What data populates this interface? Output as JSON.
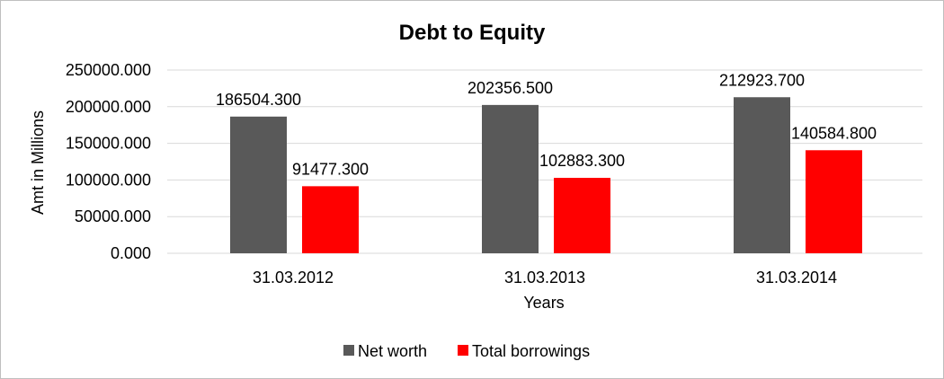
{
  "chart_data": {
    "type": "bar",
    "title": "Debt to Equity",
    "xlabel": "Years",
    "ylabel": "Amt in Millions",
    "categories": [
      "31.03.2012",
      "31.03.2013",
      "31.03.2014"
    ],
    "series": [
      {
        "name": "Net worth",
        "color": "#595959",
        "values": [
          186504.3,
          202356.5,
          212923.7
        ],
        "labels": [
          "186504.300",
          "202356.500",
          "212923.700"
        ]
      },
      {
        "name": "Total borrowings",
        "color": "#ff0000",
        "values": [
          91477.3,
          102883.3,
          140584.8
        ],
        "labels": [
          "91477.300",
          "102883.300",
          "140584.800"
        ]
      }
    ],
    "ylim": [
      0,
      250000
    ],
    "yticks": [
      0,
      50000,
      100000,
      150000,
      200000,
      250000
    ],
    "ytick_labels": [
      "0.000",
      "50000.000",
      "100000.000",
      "150000.000",
      "200000.000",
      "250000.000"
    ],
    "grid": true,
    "legend": "bottom"
  }
}
